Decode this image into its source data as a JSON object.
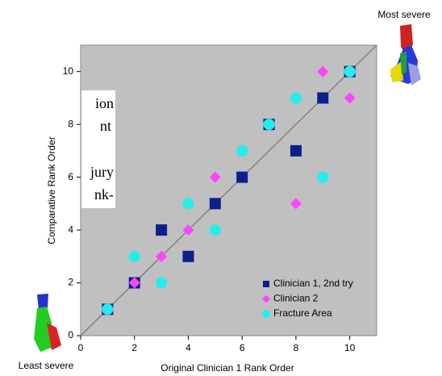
{
  "chart_data": {
    "type": "scatter",
    "x_label": "Original Clinician 1 Rank Order",
    "y_label": "Comparative Rank Order",
    "xlim": [
      0,
      11
    ],
    "ylim": [
      0,
      11
    ],
    "xticks": [
      0,
      2,
      4,
      6,
      8,
      10
    ],
    "yticks": [
      0,
      2,
      4,
      6,
      8,
      10
    ],
    "legend": "lower right",
    "reference_line": true,
    "series": [
      {
        "name": "Clinician 1, 2nd try",
        "color": "#0d1f8a",
        "marker": "square",
        "x": [
          1,
          2,
          3,
          4,
          5,
          6,
          7,
          8,
          9,
          10
        ],
        "values": [
          1,
          2,
          4,
          3,
          5,
          6,
          8,
          7,
          9,
          10
        ]
      },
      {
        "name": "Clinician 2",
        "color": "#ff44ff",
        "marker": "diamond",
        "x": [
          1,
          2,
          3,
          4,
          5,
          6,
          7,
          8,
          9,
          10
        ],
        "values": [
          1,
          2,
          3,
          4,
          6,
          7,
          8,
          5,
          10,
          9
        ]
      },
      {
        "name": "Fracture Area",
        "color": "#22eeee",
        "marker": "circle",
        "x": [
          1,
          2,
          3,
          4,
          5,
          6,
          7,
          8,
          9,
          10
        ],
        "values": [
          1,
          3,
          2,
          5,
          4,
          7,
          8,
          9,
          6,
          10
        ]
      }
    ],
    "annotations": [
      "Most severe",
      "Least severe"
    ],
    "cropped_text": [
      "ion",
      "nt",
      "jury",
      "nk-"
    ]
  }
}
